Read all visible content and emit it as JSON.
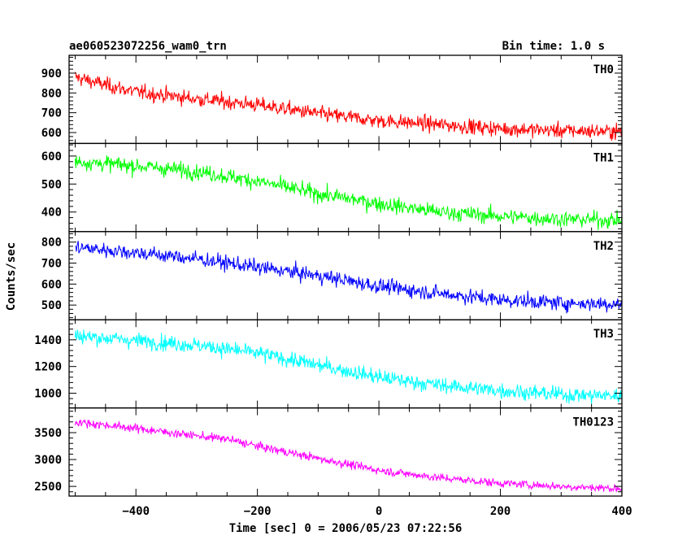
{
  "header": {
    "title": "ae060523072256_wam0_trn",
    "bin_time": "Bin time: 1.0 s"
  },
  "axes": {
    "xlabel": "Time [sec] 0 = 2006/05/23 07:22:56",
    "ylabel": "Counts/sec"
  },
  "chart_data": {
    "type": "line",
    "x_range": [
      -510,
      400
    ],
    "x_ticks": [
      -400,
      -200,
      0,
      200,
      400
    ],
    "x_tick_labels": [
      "−400",
      "−200",
      "0",
      "200",
      "400"
    ],
    "panels": [
      {
        "name": "TH0",
        "color": "#ff0000",
        "ylim": [
          545,
          990
        ],
        "y_ticks": [
          600,
          700,
          800,
          900
        ],
        "y_tick_labels": [
          "600",
          "700",
          "800",
          "900"
        ],
        "trend": [
          [
            -500,
            880
          ],
          [
            -450,
            840
          ],
          [
            -400,
            805
          ],
          [
            -300,
            770
          ],
          [
            -200,
            740
          ],
          [
            -100,
            695
          ],
          [
            0,
            660
          ],
          [
            100,
            640
          ],
          [
            200,
            620
          ],
          [
            300,
            610
          ],
          [
            400,
            605
          ]
        ],
        "noise": 30
      },
      {
        "name": "TH1",
        "color": "#00ff00",
        "ylim": [
          330,
          645
        ],
        "y_ticks": [
          400,
          500,
          600
        ],
        "y_tick_labels": [
          "400",
          "500",
          "600"
        ],
        "trend": [
          [
            -500,
            580
          ],
          [
            -400,
            565
          ],
          [
            -300,
            545
          ],
          [
            -200,
            510
          ],
          [
            -100,
            465
          ],
          [
            0,
            430
          ],
          [
            100,
            400
          ],
          [
            200,
            385
          ],
          [
            300,
            375
          ],
          [
            400,
            370
          ]
        ],
        "noise": 22
      },
      {
        "name": "TH2",
        "color": "#0000ff",
        "ylim": [
          430,
          850
        ],
        "y_ticks": [
          500,
          600,
          700,
          800
        ],
        "y_tick_labels": [
          "500",
          "600",
          "700",
          "800"
        ],
        "trend": [
          [
            -500,
            775
          ],
          [
            -400,
            750
          ],
          [
            -300,
            720
          ],
          [
            -200,
            680
          ],
          [
            -100,
            640
          ],
          [
            0,
            590
          ],
          [
            100,
            555
          ],
          [
            200,
            525
          ],
          [
            300,
            510
          ],
          [
            400,
            505
          ]
        ],
        "noise": 28
      },
      {
        "name": "TH3",
        "color": "#00ffff",
        "ylim": [
          890,
          1550
        ],
        "y_ticks": [
          1000,
          1200,
          1400
        ],
        "y_tick_labels": [
          "1000",
          "1200",
          "1400"
        ],
        "trend": [
          [
            -500,
            1430
          ],
          [
            -400,
            1395
          ],
          [
            -300,
            1360
          ],
          [
            -200,
            1300
          ],
          [
            -100,
            1210
          ],
          [
            0,
            1120
          ],
          [
            100,
            1060
          ],
          [
            200,
            1020
          ],
          [
            300,
            990
          ],
          [
            400,
            980
          ]
        ],
        "noise": 45
      },
      {
        "name": "TH0123",
        "color": "#ff00ff",
        "ylim": [
          2320,
          3960
        ],
        "y_ticks": [
          2500,
          3000,
          3500
        ],
        "y_tick_labels": [
          "2500",
          "3000",
          "3500"
        ],
        "trend": [
          [
            -500,
            3700
          ],
          [
            -400,
            3580
          ],
          [
            -300,
            3440
          ],
          [
            -250,
            3380
          ],
          [
            -200,
            3250
          ],
          [
            -100,
            3020
          ],
          [
            0,
            2800
          ],
          [
            100,
            2660
          ],
          [
            200,
            2560
          ],
          [
            300,
            2500
          ],
          [
            400,
            2460
          ]
        ],
        "noise": 60
      }
    ]
  }
}
